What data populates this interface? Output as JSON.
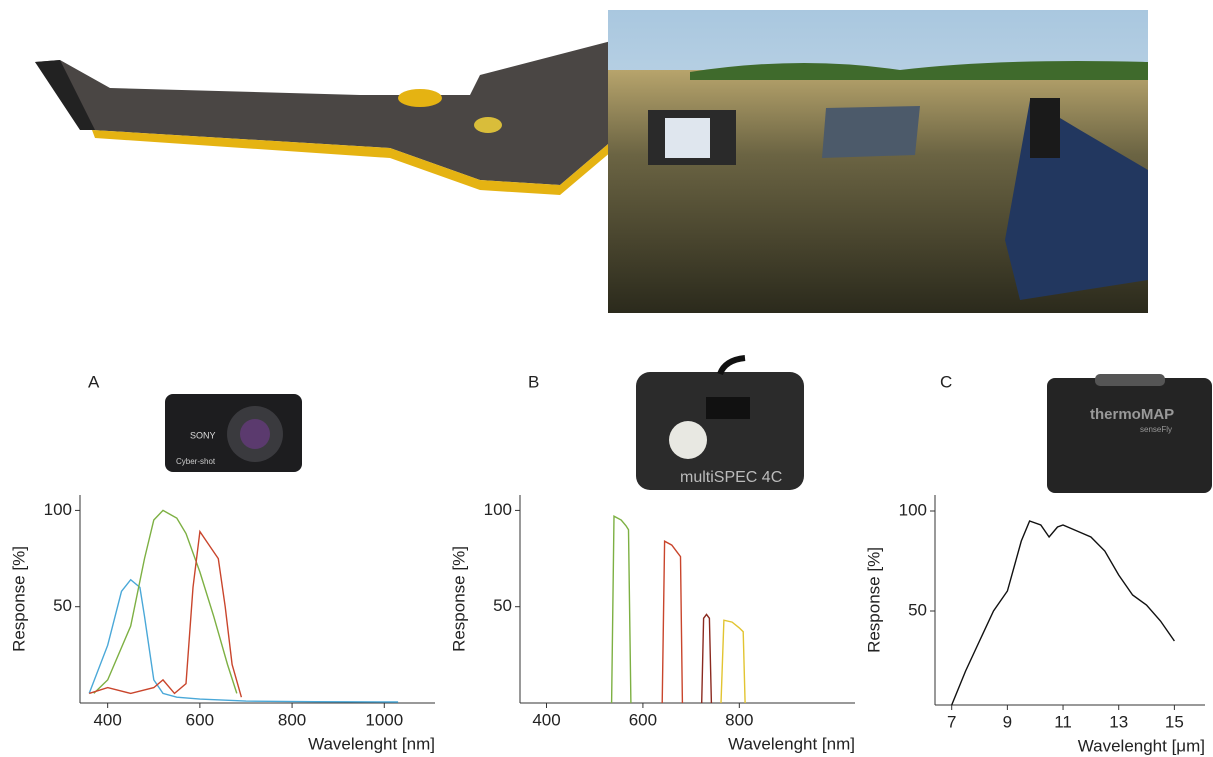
{
  "chart_data": [
    {
      "type": "line",
      "panel": "A",
      "device_labels": [
        "SONY",
        "Cyber-shot"
      ],
      "xlabel": "Wavelenght [nm]",
      "ylabel": "Response [%]",
      "xlim": [
        340,
        1110
      ],
      "ylim": [
        0,
        108
      ],
      "xticks": [
        400,
        600,
        800,
        1000
      ],
      "yticks": [
        50,
        100
      ],
      "series": [
        {
          "color": "#4aa8d8",
          "x": [
            360,
            400,
            430,
            450,
            470,
            480,
            500,
            520,
            550,
            600,
            700,
            850,
            1030
          ],
          "values": [
            5,
            30,
            58,
            64,
            60,
            45,
            12,
            5,
            3,
            2,
            1,
            0.7,
            0.5
          ]
        },
        {
          "color": "#7db043",
          "x": [
            370,
            400,
            450,
            480,
            500,
            520,
            550,
            570,
            600,
            630,
            660,
            680
          ],
          "values": [
            5,
            12,
            40,
            75,
            95,
            100,
            96,
            88,
            68,
            45,
            20,
            5
          ]
        },
        {
          "color": "#c9452c",
          "x": [
            360,
            400,
            450,
            500,
            520,
            545,
            570,
            585,
            600,
            620,
            640,
            655,
            670,
            690
          ],
          "values": [
            5,
            8,
            5,
            8,
            12,
            5,
            10,
            60,
            89,
            82,
            75,
            50,
            20,
            3
          ]
        }
      ]
    },
    {
      "type": "line",
      "panel": "B",
      "device_labels": [
        "multiSPEC 4C"
      ],
      "xlabel": "Wavelenght [nm]",
      "ylabel": "Response [%]",
      "xlim": [
        345,
        1040
      ],
      "ylim": [
        0,
        108
      ],
      "xticks": [
        400,
        600,
        800
      ],
      "yticks": [
        50,
        100
      ],
      "series": [
        {
          "color": "#7db043",
          "x": [
            535,
            540,
            555,
            565,
            570,
            575
          ],
          "values": [
            0,
            97,
            95,
            92,
            90,
            0
          ]
        },
        {
          "color": "#c9452c",
          "x": [
            640,
            645,
            660,
            672,
            678,
            682
          ],
          "values": [
            0,
            84,
            82,
            78,
            76,
            0
          ]
        },
        {
          "color": "#8b2a1f",
          "x": [
            722,
            726,
            732,
            738,
            742
          ],
          "values": [
            0,
            44,
            46,
            44,
            0
          ]
        },
        {
          "color": "#e2c431",
          "x": [
            762,
            768,
            785,
            800,
            808,
            812
          ],
          "values": [
            0,
            43,
            42,
            39,
            37,
            0
          ]
        }
      ]
    },
    {
      "type": "line",
      "panel": "C",
      "device_labels": [
        "thermoMAP",
        "senseFly"
      ],
      "xlabel": "Wavelenght [μm]",
      "ylabel": "Response [%]",
      "xlim": [
        6.4,
        16.1
      ],
      "ylim": [
        3,
        108
      ],
      "xticks": [
        7,
        9,
        11,
        13,
        15
      ],
      "yticks": [
        50,
        100
      ],
      "series": [
        {
          "color": "#111111",
          "x": [
            7,
            7.5,
            8,
            8.5,
            9,
            9.5,
            9.8,
            10.2,
            10.5,
            10.8,
            11,
            11.5,
            12,
            12.5,
            13,
            13.5,
            14,
            14.5,
            15
          ],
          "values": [
            3,
            20,
            35,
            50,
            60,
            85,
            95,
            93,
            87,
            92,
            93,
            90,
            87,
            80,
            68,
            58,
            53,
            45,
            35
          ]
        }
      ]
    }
  ]
}
